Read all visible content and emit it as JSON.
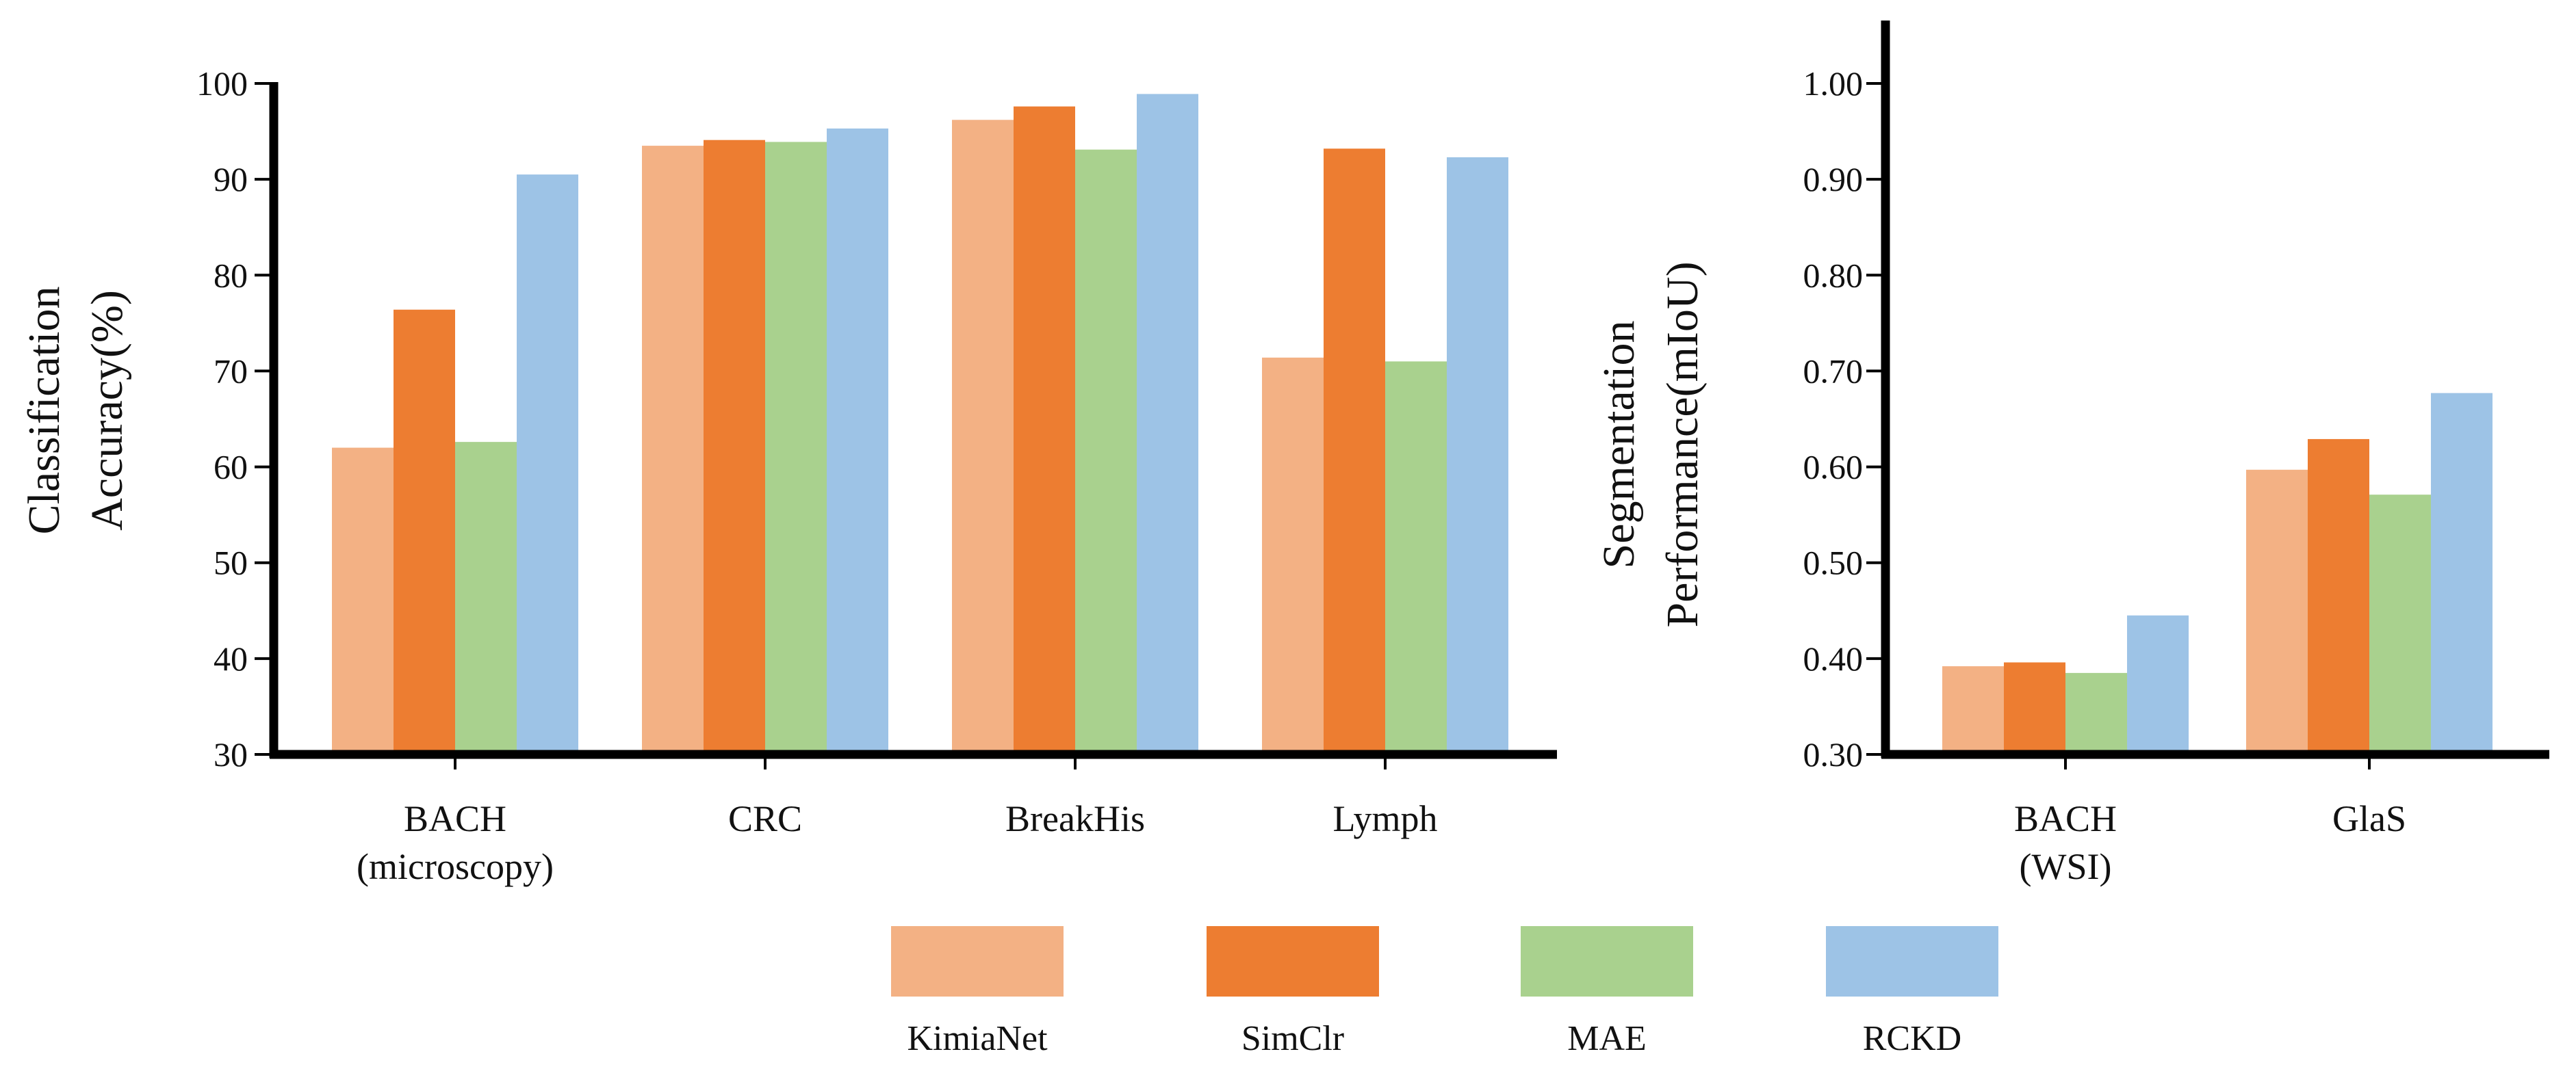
{
  "colors": {
    "KimiaNet": "#F3B184",
    "SimClr": "#ED7D31",
    "MAE": "#A9D18E",
    "RCKD": "#9DC3E6"
  },
  "chart_data": [
    {
      "type": "bar",
      "ylabel": [
        "Classification",
        "Accuracy(%)"
      ],
      "ylim": [
        30,
        100
      ],
      "yticks": [
        "30",
        "40",
        "50",
        "60",
        "70",
        "80",
        "90",
        "100"
      ],
      "categories": [
        [
          "BACH",
          "(microscopy)"
        ],
        [
          "CRC"
        ],
        [
          "BreakHis"
        ],
        [
          "Lymph"
        ]
      ],
      "series": [
        {
          "name": "KimiaNet",
          "values": [
            62.0,
            93.5,
            96.2,
            71.4
          ]
        },
        {
          "name": "SimClr",
          "values": [
            76.4,
            94.1,
            97.6,
            93.2
          ]
        },
        {
          "name": "MAE",
          "values": [
            62.6,
            93.9,
            93.1,
            71.0
          ]
        },
        {
          "name": "RCKD",
          "values": [
            90.5,
            95.3,
            98.9,
            92.3
          ]
        }
      ],
      "grid": false
    },
    {
      "type": "bar",
      "ylabel": [
        "Segmentation",
        "Performance(mIoU)"
      ],
      "ylim": [
        0.3,
        1.0
      ],
      "yticks": [
        "0.30",
        "0.40",
        "0.50",
        "0.60",
        "0.70",
        "0.80",
        "0.90",
        "1.00"
      ],
      "categories": [
        [
          "BACH",
          "(WSI)"
        ],
        [
          "GlaS"
        ]
      ],
      "series": [
        {
          "name": "KimiaNet",
          "values": [
            0.392,
            0.597
          ]
        },
        {
          "name": "SimClr",
          "values": [
            0.396,
            0.629
          ]
        },
        {
          "name": "MAE",
          "values": [
            0.385,
            0.571
          ]
        },
        {
          "name": "RCKD",
          "values": [
            0.445,
            0.677
          ]
        }
      ],
      "grid": false
    }
  ],
  "legend": {
    "placement": "bottom-center",
    "items": [
      "KimiaNet",
      "SimClr",
      "MAE",
      "RCKD"
    ]
  }
}
